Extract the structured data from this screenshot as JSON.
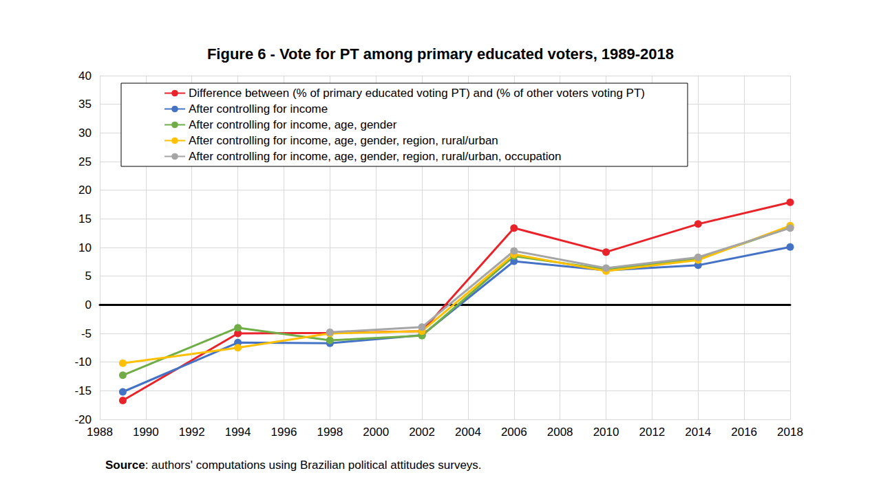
{
  "chart_data": {
    "type": "line",
    "title": "Figure 6 - Vote for PT among primary educated voters, 1989-2018",
    "annotation": "Source: authors' computations using Brazilian political attitudes surveys.",
    "x": [
      1989,
      1994,
      1998,
      2002,
      2006,
      2010,
      2014,
      2018
    ],
    "xlim": [
      1988,
      2018
    ],
    "xticks": [
      1988,
      1990,
      1992,
      1994,
      1996,
      1998,
      2000,
      2002,
      2004,
      2006,
      2008,
      2010,
      2012,
      2014,
      2016,
      2018
    ],
    "ylim": [
      -20,
      40
    ],
    "yticks": [
      -20,
      -15,
      -10,
      -5,
      0,
      5,
      10,
      15,
      20,
      25,
      30,
      35,
      40
    ],
    "grid": true,
    "legend": "upper left",
    "marker": "circle",
    "series": [
      {
        "name": "Difference between (% of primary educated voting PT) and (% of other voters voting PT)",
        "color": "#e8232a",
        "values": [
          -16.7,
          -5.0,
          -4.9,
          -4.6,
          13.4,
          9.2,
          14.1,
          17.9
        ]
      },
      {
        "name": "After controlling for income",
        "color": "#4472c4",
        "values": [
          -15.2,
          -6.6,
          -6.7,
          -5.3,
          7.6,
          6.0,
          6.9,
          10.1
        ]
      },
      {
        "name": "After controlling for income, age, gender",
        "color": "#70ad47",
        "values": [
          -12.3,
          -4.0,
          -6.2,
          -5.4,
          8.5,
          6.2,
          8.0,
          13.5
        ]
      },
      {
        "name": "After controlling for income, age, gender, region, rural/urban",
        "color": "#ffc000",
        "values": [
          -10.2,
          -7.5,
          -5.0,
          -4.6,
          8.8,
          5.9,
          7.8,
          13.8
        ]
      },
      {
        "name": "After controlling for income, age, gender, region, rural/urban, occupation",
        "color": "#a5a5a5",
        "values": [
          null,
          null,
          -4.8,
          -3.9,
          9.4,
          6.4,
          8.3,
          13.4
        ]
      }
    ]
  }
}
